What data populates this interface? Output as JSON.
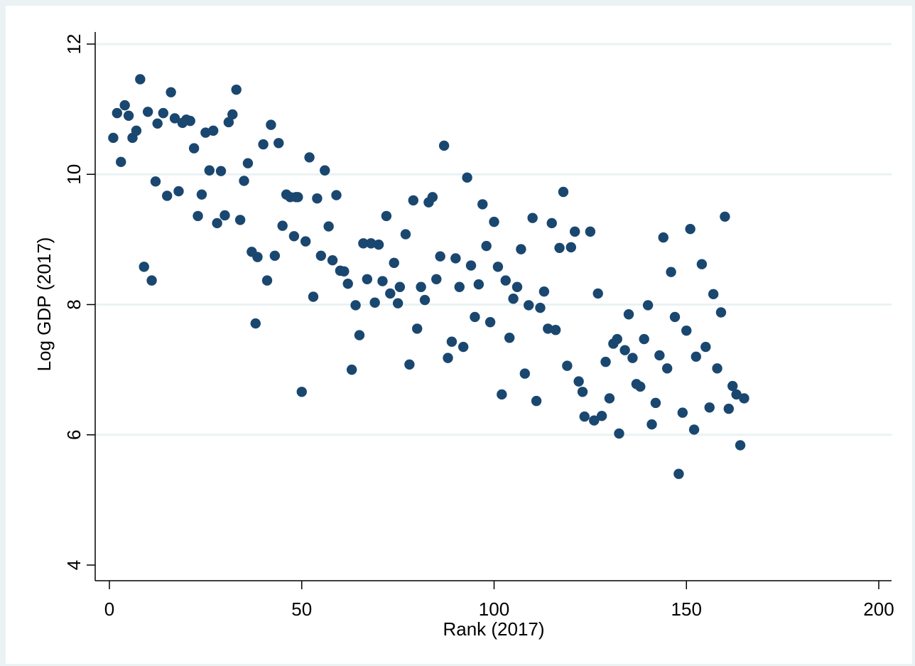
{
  "chart_data": {
    "type": "scatter",
    "xlabel": "Rank (2017)",
    "ylabel": "Log GDP (2017)",
    "xlim": [
      0,
      200
    ],
    "ylim": [
      4,
      12
    ],
    "xticks": [
      0,
      50,
      100,
      150,
      200
    ],
    "yticks": [
      4,
      6,
      8,
      10,
      12
    ],
    "grid": "horizontal",
    "colors": {
      "marker": "#1a476f",
      "grid": "#eaf2f3",
      "plot_bg": "#ffffff",
      "outer_bg": "#eaf2f3"
    },
    "points": [
      [
        1,
        10.56
      ],
      [
        2,
        10.94
      ],
      [
        3,
        10.19
      ],
      [
        4,
        11.06
      ],
      [
        5,
        10.9
      ],
      [
        6,
        10.56
      ],
      [
        7,
        10.67
      ],
      [
        8,
        11.46
      ],
      [
        9,
        8.58
      ],
      [
        10,
        10.96
      ],
      [
        11,
        8.37
      ],
      [
        12,
        9.89
      ],
      [
        12.5,
        10.78
      ],
      [
        14,
        10.94
      ],
      [
        15,
        9.67
      ],
      [
        16,
        11.26
      ],
      [
        17,
        10.86
      ],
      [
        18,
        9.74
      ],
      [
        19,
        10.79
      ],
      [
        20,
        10.84
      ],
      [
        21,
        10.82
      ],
      [
        22,
        10.4
      ],
      [
        23,
        9.36
      ],
      [
        24,
        9.69
      ],
      [
        25,
        10.64
      ],
      [
        26,
        10.06
      ],
      [
        27,
        10.67
      ],
      [
        28,
        9.25
      ],
      [
        29,
        10.05
      ],
      [
        30,
        9.37
      ],
      [
        31,
        10.8
      ],
      [
        32,
        10.92
      ],
      [
        33,
        11.3
      ],
      [
        34,
        9.3
      ],
      [
        35,
        9.9
      ],
      [
        36,
        10.17
      ],
      [
        37,
        8.81
      ],
      [
        38,
        7.71
      ],
      [
        38.5,
        8.73
      ],
      [
        40,
        10.46
      ],
      [
        41,
        8.37
      ],
      [
        42,
        10.76
      ],
      [
        43,
        8.75
      ],
      [
        44,
        10.48
      ],
      [
        45,
        9.21
      ],
      [
        46,
        9.69
      ],
      [
        47,
        9.65
      ],
      [
        48,
        9.05
      ],
      [
        48.5,
        9.65
      ],
      [
        49,
        9.65
      ],
      [
        50,
        6.66
      ],
      [
        51,
        8.97
      ],
      [
        52,
        10.26
      ],
      [
        53,
        8.12
      ],
      [
        54,
        9.63
      ],
      [
        55,
        8.75
      ],
      [
        56,
        10.06
      ],
      [
        57,
        9.2
      ],
      [
        58,
        8.68
      ],
      [
        59,
        9.68
      ],
      [
        60,
        8.52
      ],
      [
        61,
        8.51
      ],
      [
        62,
        8.32
      ],
      [
        63,
        7.0
      ],
      [
        64,
        7.99
      ],
      [
        65,
        7.53
      ],
      [
        66,
        8.94
      ],
      [
        67,
        8.39
      ],
      [
        68,
        8.94
      ],
      [
        69,
        8.03
      ],
      [
        70,
        8.92
      ],
      [
        71,
        8.36
      ],
      [
        72,
        9.36
      ],
      [
        73,
        8.17
      ],
      [
        74,
        8.64
      ],
      [
        75,
        8.02
      ],
      [
        75.5,
        8.27
      ],
      [
        77,
        9.08
      ],
      [
        78,
        7.08
      ],
      [
        79,
        9.6
      ],
      [
        80,
        7.63
      ],
      [
        81,
        8.27
      ],
      [
        82,
        8.07
      ],
      [
        83,
        9.57
      ],
      [
        84,
        9.65
      ],
      [
        85,
        8.39
      ],
      [
        86,
        8.74
      ],
      [
        87,
        10.44
      ],
      [
        88,
        7.18
      ],
      [
        89,
        7.43
      ],
      [
        90,
        8.71
      ],
      [
        91,
        8.27
      ],
      [
        92,
        7.35
      ],
      [
        93,
        9.95
      ],
      [
        94,
        8.6
      ],
      [
        95,
        7.81
      ],
      [
        96,
        8.31
      ],
      [
        97,
        9.54
      ],
      [
        98,
        8.9
      ],
      [
        99,
        7.73
      ],
      [
        100,
        9.27
      ],
      [
        101,
        8.58
      ],
      [
        102,
        6.62
      ],
      [
        103,
        8.37
      ],
      [
        104,
        7.49
      ],
      [
        105,
        8.09
      ],
      [
        106,
        8.27
      ],
      [
        107,
        8.85
      ],
      [
        108,
        6.94
      ],
      [
        109,
        7.99
      ],
      [
        110,
        9.33
      ],
      [
        111,
        6.52
      ],
      [
        112,
        7.95
      ],
      [
        113,
        8.2
      ],
      [
        114,
        7.63
      ],
      [
        115,
        9.25
      ],
      [
        116,
        7.61
      ],
      [
        117,
        8.87
      ],
      [
        118,
        9.73
      ],
      [
        119,
        7.06
      ],
      [
        120,
        8.88
      ],
      [
        121,
        9.12
      ],
      [
        122,
        6.82
      ],
      [
        123,
        6.66
      ],
      [
        123.5,
        6.28
      ],
      [
        125,
        9.12
      ],
      [
        126,
        6.22
      ],
      [
        127,
        8.17
      ],
      [
        128,
        6.29
      ],
      [
        129,
        7.12
      ],
      [
        130,
        6.56
      ],
      [
        131,
        7.4
      ],
      [
        132,
        7.47
      ],
      [
        132.5,
        6.02
      ],
      [
        134,
        7.3
      ],
      [
        135,
        7.85
      ],
      [
        136,
        7.18
      ],
      [
        137,
        6.78
      ],
      [
        138,
        6.74
      ],
      [
        139,
        7.47
      ],
      [
        140,
        7.99
      ],
      [
        141,
        6.16
      ],
      [
        142,
        6.49
      ],
      [
        143,
        7.22
      ],
      [
        144,
        9.03
      ],
      [
        145,
        7.02
      ],
      [
        146,
        8.5
      ],
      [
        147,
        7.81
      ],
      [
        148,
        5.4
      ],
      [
        149,
        6.34
      ],
      [
        150,
        7.6
      ],
      [
        151,
        9.16
      ],
      [
        152,
        6.08
      ],
      [
        152.5,
        7.2
      ],
      [
        154,
        8.62
      ],
      [
        155,
        7.35
      ],
      [
        156,
        6.42
      ],
      [
        157,
        8.16
      ],
      [
        158,
        7.02
      ],
      [
        159,
        7.88
      ],
      [
        160,
        9.35
      ],
      [
        161,
        6.4
      ],
      [
        162,
        6.75
      ],
      [
        163,
        6.62
      ],
      [
        164,
        5.84
      ],
      [
        165,
        6.56
      ]
    ]
  }
}
